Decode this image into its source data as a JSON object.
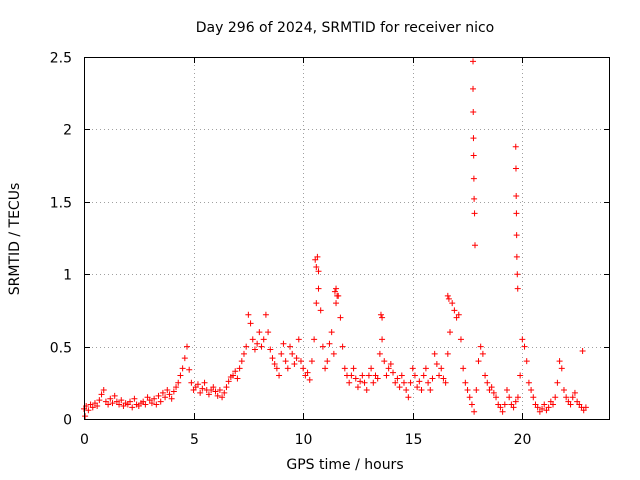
{
  "chart_data": {
    "type": "scatter",
    "title": "Day 296 of 2024, SRMTID for receiver nico",
    "xlabel": "GPS time / hours",
    "ylabel": "SRMTID / TECUs",
    "xlim": [
      0,
      24
    ],
    "ylim": [
      0,
      2.5
    ],
    "x_ticks": [
      0,
      5,
      10,
      15,
      20
    ],
    "y_ticks": [
      0,
      0.5,
      1,
      1.5,
      2,
      2.5
    ],
    "x_tick_labels": [
      "0",
      "5",
      "10",
      "15",
      "20"
    ],
    "y_tick_labels": [
      "0",
      "0.5",
      "1",
      "1.5",
      "2",
      "2.5"
    ],
    "grid": true,
    "marker": "+",
    "series": [
      {
        "name": "SRMTID",
        "color": "#ff0000",
        "x": [
          0.0,
          0.1,
          0.2,
          0.3,
          0.4,
          0.5,
          0.6,
          0.7,
          0.8,
          0.9,
          1.0,
          1.1,
          1.2,
          1.3,
          1.4,
          1.5,
          1.6,
          1.7,
          1.8,
          1.9,
          2.0,
          2.1,
          2.2,
          2.3,
          2.4,
          2.5,
          2.6,
          2.7,
          2.8,
          2.9,
          3.0,
          3.1,
          3.2,
          3.3,
          3.4,
          3.5,
          3.6,
          3.7,
          3.8,
          3.9,
          4.0,
          4.1,
          4.2,
          4.3,
          4.4,
          4.5,
          4.6,
          4.7,
          4.8,
          4.9,
          5.0,
          5.1,
          5.2,
          5.3,
          5.4,
          5.5,
          5.6,
          5.7,
          5.8,
          5.9,
          6.0,
          6.1,
          6.2,
          6.3,
          6.4,
          6.5,
          6.6,
          6.7,
          6.8,
          6.9,
          7.0,
          7.1,
          7.2,
          7.3,
          7.4,
          7.5,
          7.6,
          7.7,
          7.8,
          7.9,
          8.0,
          8.1,
          8.2,
          8.3,
          8.4,
          8.5,
          8.6,
          8.7,
          8.8,
          8.9,
          9.0,
          9.1,
          9.2,
          9.3,
          9.4,
          9.5,
          9.6,
          9.7,
          9.8,
          9.9,
          10.0,
          10.1,
          10.2,
          10.3,
          10.4,
          10.5,
          10.6,
          10.7,
          10.8,
          10.9,
          11.0,
          11.1,
          11.2,
          11.3,
          11.4,
          11.5,
          11.6,
          11.7,
          11.8,
          11.9,
          12.0,
          12.1,
          12.2,
          12.3,
          12.4,
          12.5,
          12.6,
          12.7,
          12.8,
          12.9,
          13.0,
          13.1,
          13.2,
          13.3,
          13.4,
          13.5,
          13.6,
          13.7,
          13.8,
          13.9,
          14.0,
          14.1,
          14.2,
          14.3,
          14.4,
          14.5,
          14.6,
          14.7,
          14.8,
          14.9,
          15.0,
          15.1,
          15.2,
          15.3,
          15.4,
          15.5,
          15.6,
          15.7,
          15.8,
          15.9,
          16.0,
          16.1,
          16.2,
          16.3,
          16.4,
          16.5,
          16.6,
          16.7,
          16.8,
          16.9,
          17.0,
          17.1,
          17.2,
          17.3,
          17.4,
          17.5,
          17.6,
          17.7,
          17.8,
          17.9,
          18.0,
          18.1,
          18.2,
          18.3,
          18.4,
          18.5,
          18.6,
          18.7,
          18.8,
          18.9,
          19.0,
          19.1,
          19.2,
          19.3,
          19.4,
          19.5,
          19.6,
          19.7,
          19.8,
          19.9,
          20.0,
          20.1,
          20.2,
          20.3,
          20.4,
          20.5,
          20.6,
          20.7,
          20.8,
          20.9,
          21.0,
          21.1,
          21.2,
          21.3,
          21.4,
          21.5,
          21.6,
          21.7,
          21.8,
          21.9,
          22.0,
          22.1,
          22.2,
          22.3,
          22.4,
          22.5,
          22.6,
          22.7,
          22.8,
          22.9,
          0.05,
          17.75,
          17.75,
          17.76,
          17.77,
          17.78,
          17.79,
          17.8,
          17.82,
          17.84,
          19.7,
          19.71,
          19.72,
          19.73,
          19.74,
          19.75,
          19.77,
          19.79,
          10.55,
          10.6,
          10.65,
          10.7,
          11.45,
          11.5,
          11.55,
          13.55,
          13.6,
          16.6,
          16.65,
          22.75
        ],
        "y": [
          0.07,
          0.09,
          0.06,
          0.1,
          0.08,
          0.11,
          0.09,
          0.13,
          0.17,
          0.2,
          0.12,
          0.1,
          0.14,
          0.11,
          0.16,
          0.12,
          0.1,
          0.13,
          0.09,
          0.11,
          0.1,
          0.12,
          0.08,
          0.14,
          0.1,
          0.09,
          0.11,
          0.12,
          0.1,
          0.15,
          0.13,
          0.11,
          0.14,
          0.1,
          0.16,
          0.12,
          0.18,
          0.15,
          0.2,
          0.17,
          0.14,
          0.19,
          0.22,
          0.25,
          0.3,
          0.35,
          0.42,
          0.5,
          0.34,
          0.25,
          0.2,
          0.22,
          0.24,
          0.18,
          0.21,
          0.25,
          0.2,
          0.17,
          0.2,
          0.22,
          0.19,
          0.16,
          0.2,
          0.15,
          0.18,
          0.22,
          0.26,
          0.29,
          0.3,
          0.33,
          0.28,
          0.35,
          0.4,
          0.45,
          0.5,
          0.72,
          0.66,
          0.55,
          0.48,
          0.52,
          0.6,
          0.5,
          0.55,
          0.72,
          0.6,
          0.48,
          0.42,
          0.38,
          0.35,
          0.3,
          0.45,
          0.52,
          0.4,
          0.35,
          0.5,
          0.45,
          0.38,
          0.42,
          0.55,
          0.4,
          0.35,
          0.3,
          0.32,
          0.27,
          0.4,
          0.55,
          0.8,
          0.9,
          0.75,
          0.5,
          0.35,
          0.4,
          0.52,
          0.6,
          0.45,
          0.8,
          0.85,
          0.7,
          0.5,
          0.35,
          0.3,
          0.25,
          0.3,
          0.35,
          0.28,
          0.22,
          0.26,
          0.3,
          0.25,
          0.2,
          0.3,
          0.35,
          0.25,
          0.3,
          0.28,
          0.45,
          0.55,
          0.4,
          0.3,
          0.35,
          0.38,
          0.32,
          0.25,
          0.28,
          0.22,
          0.3,
          0.25,
          0.2,
          0.15,
          0.25,
          0.35,
          0.3,
          0.22,
          0.26,
          0.2,
          0.3,
          0.35,
          0.25,
          0.2,
          0.28,
          0.45,
          0.38,
          0.3,
          0.35,
          0.28,
          0.25,
          0.45,
          0.6,
          0.8,
          0.75,
          0.7,
          0.72,
          0.55,
          0.35,
          0.25,
          0.2,
          0.15,
          0.1,
          0.05,
          0.2,
          0.4,
          0.5,
          0.45,
          0.3,
          0.25,
          0.2,
          0.22,
          0.18,
          0.15,
          0.1,
          0.08,
          0.05,
          0.1,
          0.2,
          0.15,
          0.1,
          0.08,
          0.12,
          0.15,
          0.3,
          0.55,
          0.5,
          0.4,
          0.25,
          0.2,
          0.15,
          0.1,
          0.08,
          0.05,
          0.07,
          0.1,
          0.06,
          0.08,
          0.12,
          0.1,
          0.15,
          0.25,
          0.4,
          0.35,
          0.2,
          0.15,
          0.12,
          0.1,
          0.15,
          0.18,
          0.12,
          0.1,
          0.08,
          0.06,
          0.08,
          0.02,
          2.47,
          2.28,
          2.12,
          1.94,
          1.82,
          1.66,
          1.52,
          1.42,
          1.2,
          1.88,
          1.73,
          1.54,
          1.42,
          1.27,
          1.12,
          1.0,
          0.9,
          1.1,
          1.05,
          1.12,
          1.02,
          0.88,
          0.9,
          0.85,
          0.72,
          0.7,
          0.85,
          0.83,
          0.47
        ]
      }
    ]
  }
}
